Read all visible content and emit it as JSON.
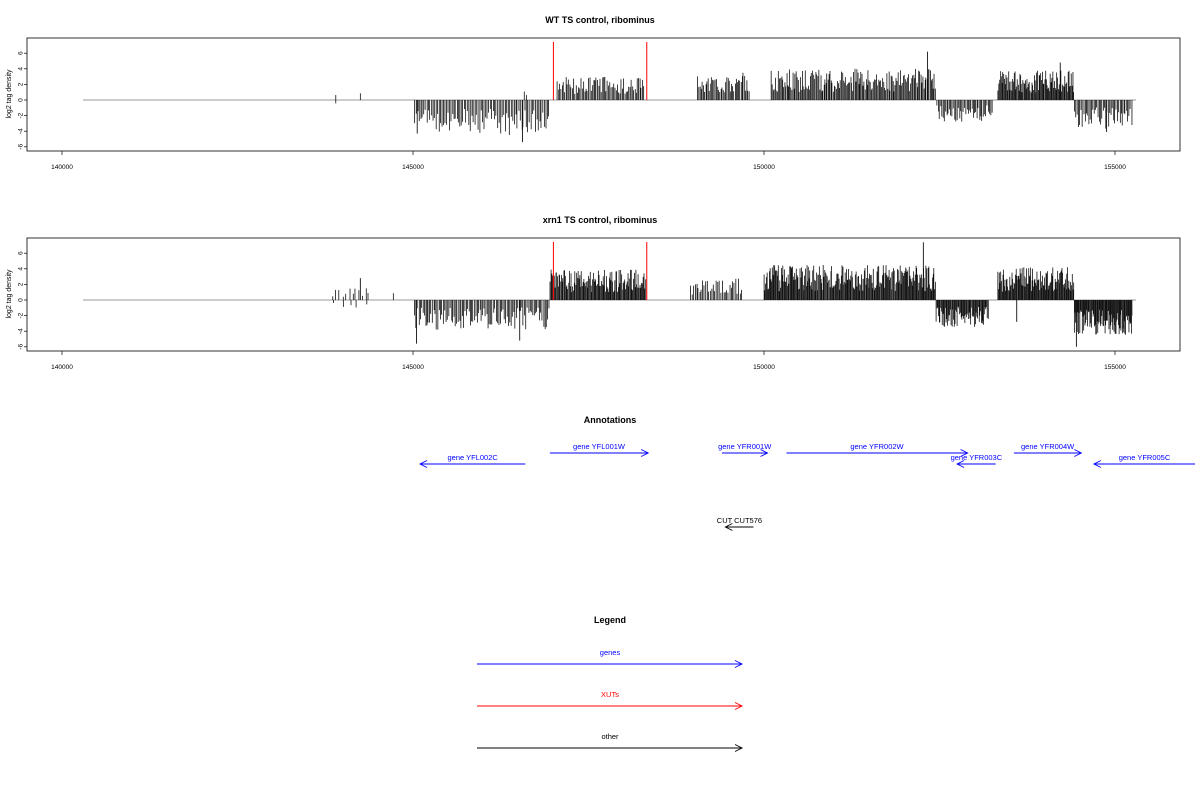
{
  "chart_data": [
    {
      "type": "bar",
      "title": "WT TS control, ribominus",
      "xlabel": "",
      "ylabel": "log2 tag density",
      "xlim": [
        140000,
        155000
      ],
      "ylim": [
        -6,
        6
      ],
      "x_ticks": [
        140000,
        145000,
        150000,
        155000
      ],
      "x_tick_labels": [
        "140000",
        "145000",
        "150000",
        "155000"
      ],
      "y_ticks": [
        -6,
        -4,
        -2,
        0,
        2,
        4,
        6
      ],
      "y_tick_labels": [
        "-6",
        "-4",
        "-2",
        "0",
        "2",
        "4",
        "6"
      ],
      "baseline_range": [
        140300,
        155300
      ],
      "markers": [
        {
          "x": 147000,
          "color": "#ff0000"
        },
        {
          "x": 148330,
          "color": "#ff0000"
        }
      ],
      "segments": [
        {
          "x0": 143900,
          "x1": 143900,
          "sign": 1,
          "amp": 1.5,
          "n": 1,
          "seed": 11
        },
        {
          "x0": 143900,
          "x1": 143900,
          "sign": -1,
          "amp": 1.0,
          "n": 1,
          "seed": 12
        },
        {
          "x0": 144250,
          "x1": 144250,
          "sign": 1,
          "amp": 2.0,
          "n": 1,
          "seed": 13
        },
        {
          "x0": 145020,
          "x1": 146950,
          "sign": -1,
          "amp": 4.5,
          "n": 90,
          "seed": 14
        },
        {
          "x0": 146580,
          "x1": 146650,
          "sign": 1,
          "amp": 1.5,
          "n": 2,
          "seed": 15
        },
        {
          "x0": 147050,
          "x1": 148300,
          "sign": 1,
          "amp": 3.0,
          "n": 70,
          "seed": 16
        },
        {
          "x0": 149050,
          "x1": 149800,
          "sign": 1,
          "amp": 3.5,
          "n": 45,
          "seed": 17
        },
        {
          "x0": 150100,
          "x1": 152450,
          "sign": 1,
          "amp": 4.0,
          "n": 160,
          "seed": 18
        },
        {
          "x0": 152460,
          "x1": 153260,
          "sign": -1,
          "amp": 2.8,
          "n": 45,
          "seed": 19
        },
        {
          "x0": 153330,
          "x1": 154420,
          "sign": 1,
          "amp": 3.8,
          "n": 95,
          "seed": 20
        },
        {
          "x0": 154420,
          "x1": 155250,
          "sign": -1,
          "amp": 3.8,
          "n": 45,
          "seed": 21
        }
      ],
      "spikes": [
        {
          "x": 146560,
          "y": -5.4
        },
        {
          "x": 145060,
          "y": -4.3
        },
        {
          "x": 152330,
          "y": 6.2
        },
        {
          "x": 154220,
          "y": 4.8
        },
        {
          "x": 154880,
          "y": -4.1
        }
      ]
    },
    {
      "type": "bar",
      "title": "xrn1 TS control, ribominus",
      "xlabel": "",
      "ylabel": "log2 tag density",
      "xlim": [
        140000,
        155000
      ],
      "ylim": [
        -6,
        6
      ],
      "x_ticks": [
        140000,
        145000,
        150000,
        155000
      ],
      "x_tick_labels": [
        "140000",
        "145000",
        "150000",
        "155000"
      ],
      "y_ticks": [
        -6,
        -4,
        -2,
        0,
        2,
        4,
        6
      ],
      "y_tick_labels": [
        "-6",
        "-4",
        "-2",
        "0",
        "2",
        "4",
        "6"
      ],
      "baseline_range": [
        140300,
        155300
      ],
      "markers": [
        {
          "x": 147000,
          "color": "#ff0000"
        },
        {
          "x": 148330,
          "color": "#ff0000"
        }
      ],
      "segments": [
        {
          "x0": 143850,
          "x1": 144400,
          "sign": 1,
          "amp": 1.5,
          "n": 12,
          "seed": 31
        },
        {
          "x0": 143850,
          "x1": 144400,
          "sign": -1,
          "amp": 1.0,
          "n": 5,
          "seed": 32
        },
        {
          "x0": 144720,
          "x1": 144720,
          "sign": 1,
          "amp": 2.0,
          "n": 1,
          "seed": 33
        },
        {
          "x0": 145020,
          "x1": 146950,
          "sign": -1,
          "amp": 3.8,
          "n": 100,
          "seed": 34
        },
        {
          "x0": 146950,
          "x1": 148320,
          "sign": 1,
          "amp": 4.0,
          "n": 120,
          "seed": 35
        },
        {
          "x0": 148950,
          "x1": 149700,
          "sign": 1,
          "amp": 2.8,
          "n": 35,
          "seed": 36
        },
        {
          "x0": 150000,
          "x1": 152450,
          "sign": 1,
          "amp": 4.5,
          "n": 230,
          "seed": 37
        },
        {
          "x0": 152450,
          "x1": 153200,
          "sign": -1,
          "amp": 3.5,
          "n": 70,
          "seed": 38
        },
        {
          "x0": 153330,
          "x1": 154420,
          "sign": 1,
          "amp": 4.2,
          "n": 110,
          "seed": 39
        },
        {
          "x0": 154420,
          "x1": 155250,
          "sign": -1,
          "amp": 4.5,
          "n": 90,
          "seed": 40
        }
      ],
      "spikes": [
        {
          "x": 145050,
          "y": -5.6
        },
        {
          "x": 146520,
          "y": -5.2
        },
        {
          "x": 152270,
          "y": 7.4
        },
        {
          "x": 154450,
          "y": -6.0
        },
        {
          "x": 144250,
          "y": 2.8
        },
        {
          "x": 153600,
          "y": -2.8
        }
      ]
    }
  ],
  "annotations": {
    "title": "Annotations",
    "genes": [
      {
        "label": "gene YFL002C",
        "x0": 145100,
        "x1": 146600,
        "dir": "left",
        "row": 2
      },
      {
        "label": "gene YFL001W",
        "x0": 146950,
        "x1": 148350,
        "dir": "right",
        "row": 1
      },
      {
        "label": "gene YFR001W",
        "x0": 149400,
        "x1": 150050,
        "dir": "right",
        "row": 1
      },
      {
        "label": "gene YFR002W",
        "x0": 150320,
        "x1": 152900,
        "dir": "right",
        "row": 1
      },
      {
        "label": "gene YFR003C",
        "x0": 152750,
        "x1": 153300,
        "dir": "left",
        "row": 2
      },
      {
        "label": "gene YFR004W",
        "x0": 153560,
        "x1": 154520,
        "dir": "right",
        "row": 1
      },
      {
        "label": "gene YFR005C",
        "x0": 154700,
        "x1": 156200,
        "dir": "left",
        "row": 2
      }
    ],
    "other": [
      {
        "label": "CUT CUT576",
        "x0": 149450,
        "x1": 149850,
        "dir": "left"
      }
    ]
  },
  "legend": {
    "title": "Legend",
    "entries": [
      {
        "label": "genes",
        "color": "#0000ff"
      },
      {
        "label": "XUTs",
        "color": "#ff0000"
      },
      {
        "label": "other",
        "color": "#000000"
      }
    ]
  }
}
